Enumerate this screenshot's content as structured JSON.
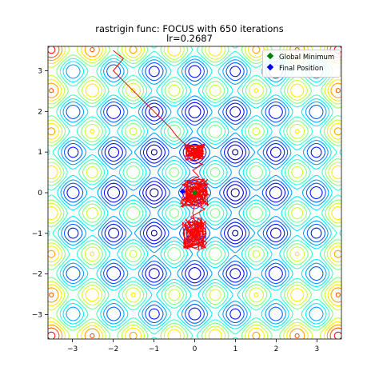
{
  "chart_data": {
    "type": "contour",
    "title": "rastrigin func: FOCUS with 650 iterations",
    "subtitle": "lr=0.2687",
    "function": "rastrigin",
    "xlim": [
      -3.6,
      3.6
    ],
    "ylim": [
      -3.6,
      3.6
    ],
    "x_ticks": [
      "−3",
      "−2",
      "−1",
      "0",
      "1",
      "2",
      "3"
    ],
    "y_ticks": [
      "−3",
      "−2",
      "−1",
      "0",
      "1",
      "2",
      "3"
    ],
    "grid": false,
    "legend_position": "top-right",
    "colormap": "jet",
    "contour_levels": [
      3,
      8,
      13,
      18,
      23,
      28,
      33,
      38,
      43,
      48,
      53,
      58,
      63,
      68,
      73
    ],
    "legend": [
      {
        "label": "Global Minimum",
        "color": "#008000",
        "marker": "diamond"
      },
      {
        "label": "Final Position",
        "color": "#0000ff",
        "marker": "diamond"
      }
    ],
    "global_minimum": {
      "x": 0.0,
      "y": 0.0
    },
    "final_position": {
      "x": -0.3,
      "y": 0.03
    },
    "trajectory": {
      "color": "#ff0000",
      "start": {
        "x": -2.0,
        "y": 3.5
      },
      "path": [
        [
          -2.0,
          3.5
        ],
        [
          -1.75,
          3.3
        ],
        [
          -2.0,
          3.0
        ],
        [
          -1.75,
          2.75
        ],
        [
          -1.5,
          2.5
        ],
        [
          -1.25,
          2.25
        ],
        [
          -1.0,
          2.0
        ],
        [
          -0.8,
          1.8
        ],
        [
          -0.6,
          1.6
        ],
        [
          -0.45,
          1.4
        ],
        [
          -0.3,
          1.25
        ],
        [
          -0.1,
          1.1
        ],
        [
          0.0,
          1.05
        ],
        [
          0.15,
          0.9
        ],
        [
          -0.1,
          0.8
        ],
        [
          0.2,
          0.7
        ],
        [
          -0.05,
          0.55
        ],
        [
          0.1,
          0.4
        ],
        [
          -0.3,
          0.2
        ],
        [
          0.3,
          0.0
        ],
        [
          -0.2,
          -0.2
        ],
        [
          0.25,
          -0.4
        ],
        [
          -0.1,
          -0.6
        ],
        [
          0.2,
          -0.8
        ],
        [
          -0.1,
          -1.0
        ],
        [
          0.2,
          -1.2
        ],
        [
          -0.2,
          -1.3
        ],
        [
          0.1,
          -1.4
        ],
        [
          0.05,
          -0.9
        ],
        [
          -0.05,
          -0.5
        ],
        [
          0.05,
          -0.1
        ],
        [
          -0.3,
          0.03
        ]
      ],
      "oscillation_clusters": [
        {
          "x": 0.0,
          "y": 1.0,
          "spread_x": 0.25,
          "spread_y": 0.2
        },
        {
          "x": 0.0,
          "y": 0.0,
          "spread_x": 0.35,
          "spread_y": 0.35
        },
        {
          "x": 0.0,
          "y": -1.0,
          "spread_x": 0.3,
          "spread_y": 0.4
        }
      ]
    }
  }
}
